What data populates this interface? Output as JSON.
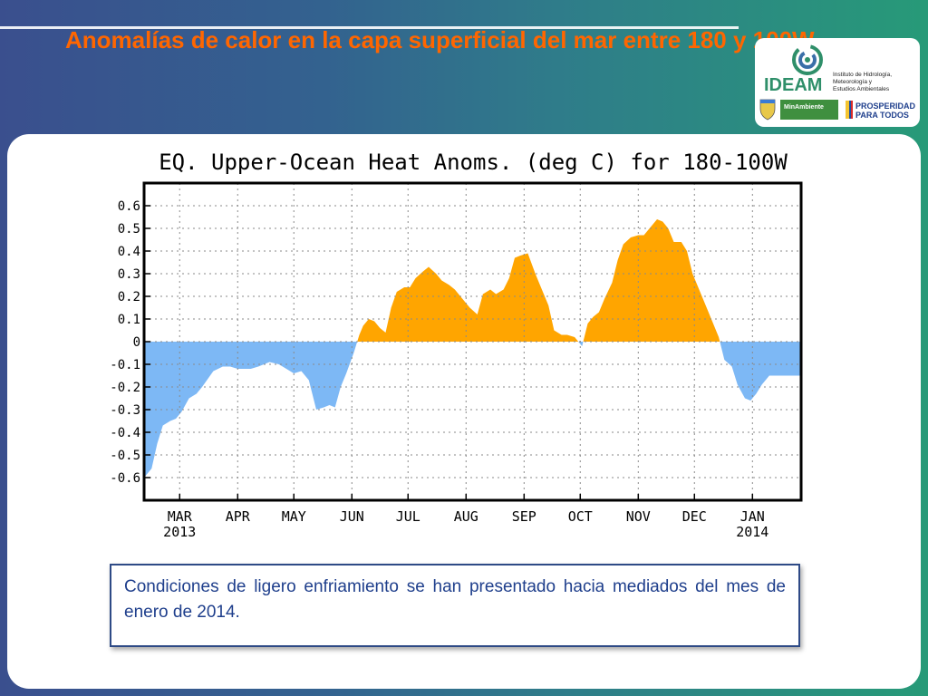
{
  "slide": {
    "title": "Anomalías de calor en la capa superficial del mar entre 180 y 100W",
    "note": "Condiciones de ligero enfriamiento se han presentado hacia mediados del mes de enero de 2014."
  },
  "logo": {
    "brand": "IDEAM",
    "institute_lines": [
      "Instituto de Hidrología,",
      "Meteorología y",
      "Estudios Ambientales"
    ],
    "ministry": "MinAmbiente",
    "prosperidad": [
      "PROSPERIDAD",
      "PARA TODOS"
    ]
  },
  "colors": {
    "title": "#ff6600",
    "positive_fill": "#ffa500",
    "negative_fill": "#7db8f5",
    "note_border": "#2e4a86",
    "note_text": "#1f3f8c",
    "ideam_green": "#2f8f6a"
  },
  "chart_data": {
    "type": "area",
    "title": "EQ. Upper-Ocean Heat Anoms. (deg C) for 180-100W",
    "xlabel": "",
    "ylabel": "",
    "ylim": [
      -0.6,
      0.6
    ],
    "y_ticks": [
      "0.6",
      "0.5",
      "0.4",
      "0.3",
      "0.2",
      "0.1",
      "0",
      "-0.1",
      "-0.2",
      "-0.3",
      "-0.4",
      "-0.5",
      "-0.6"
    ],
    "x_ticks": [
      {
        "date": "2013-03-01",
        "label": "MAR",
        "year": "2013"
      },
      {
        "date": "2013-04-01",
        "label": "APR",
        "year": ""
      },
      {
        "date": "2013-05-01",
        "label": "MAY",
        "year": ""
      },
      {
        "date": "2013-06-01",
        "label": "JUN",
        "year": ""
      },
      {
        "date": "2013-07-01",
        "label": "JUL",
        "year": ""
      },
      {
        "date": "2013-08-01",
        "label": "AUG",
        "year": ""
      },
      {
        "date": "2013-09-01",
        "label": "SEP",
        "year": ""
      },
      {
        "date": "2013-10-01",
        "label": "OCT",
        "year": ""
      },
      {
        "date": "2013-11-01",
        "label": "NOV",
        "year": ""
      },
      {
        "date": "2013-12-01",
        "label": "DEC",
        "year": ""
      },
      {
        "date": "2014-01-01",
        "label": "JAN",
        "year": "2014"
      }
    ],
    "xlim": [
      "2013-02-10",
      "2014-01-27"
    ],
    "grid": true,
    "series": [
      {
        "x": [
          "2013-02-10",
          "2013-02-14",
          "2013-02-17",
          "2013-02-20",
          "2013-02-24",
          "2013-02-27",
          "2013-03-02",
          "2013-03-06",
          "2013-03-10",
          "2013-03-13",
          "2013-03-19",
          "2013-03-24",
          "2013-03-28",
          "2013-04-01",
          "2013-04-04",
          "2013-04-08",
          "2013-04-12",
          "2013-04-18",
          "2013-04-23",
          "2013-04-27",
          "2013-05-01",
          "2013-05-05",
          "2013-05-09",
          "2013-05-13",
          "2013-05-17",
          "2013-05-20",
          "2013-05-23",
          "2013-05-26",
          "2013-05-29",
          "2013-06-02",
          "2013-06-05",
          "2013-06-07",
          "2013-06-10",
          "2013-06-13",
          "2013-06-16",
          "2013-06-19",
          "2013-06-22",
          "2013-06-25",
          "2013-06-29",
          "2013-07-02",
          "2013-07-05",
          "2013-07-09",
          "2013-07-12",
          "2013-07-16",
          "2013-07-19",
          "2013-07-23",
          "2013-07-26",
          "2013-07-30",
          "2013-08-03",
          "2013-08-07",
          "2013-08-10",
          "2013-08-14",
          "2013-08-17",
          "2013-08-21",
          "2013-08-24",
          "2013-08-27",
          "2013-08-30",
          "2013-09-03",
          "2013-09-07",
          "2013-09-10",
          "2013-09-14",
          "2013-09-17",
          "2013-09-21",
          "2013-09-24",
          "2013-09-28",
          "2013-10-02",
          "2013-10-05",
          "2013-10-08",
          "2013-10-11",
          "2013-10-14",
          "2013-10-18",
          "2013-10-21",
          "2013-10-24",
          "2013-10-28",
          "2013-11-01",
          "2013-11-04",
          "2013-11-07",
          "2013-11-11",
          "2013-11-14",
          "2013-11-17",
          "2013-11-20",
          "2013-11-24",
          "2013-11-27",
          "2013-11-30",
          "2013-12-04",
          "2013-12-07",
          "2013-12-10",
          "2013-12-14",
          "2013-12-17",
          "2013-12-21",
          "2013-12-24",
          "2013-12-28",
          "2013-12-31",
          "2014-01-03",
          "2014-01-06",
          "2014-01-10",
          "2014-01-13",
          "2014-01-17",
          "2014-01-20",
          "2014-01-24",
          "2014-01-27"
        ],
        "values": [
          -0.6,
          -0.56,
          -0.45,
          -0.37,
          -0.35,
          -0.34,
          -0.31,
          -0.25,
          -0.23,
          -0.2,
          -0.13,
          -0.11,
          -0.11,
          -0.12,
          -0.12,
          -0.12,
          -0.11,
          -0.09,
          -0.1,
          -0.12,
          -0.14,
          -0.13,
          -0.17,
          -0.3,
          -0.29,
          -0.28,
          -0.29,
          -0.2,
          -0.14,
          -0.05,
          0.03,
          0.07,
          0.1,
          0.09,
          0.06,
          0.04,
          0.15,
          0.22,
          0.24,
          0.24,
          0.28,
          0.31,
          0.33,
          0.3,
          0.27,
          0.25,
          0.23,
          0.19,
          0.15,
          0.12,
          0.21,
          0.23,
          0.21,
          0.23,
          0.28,
          0.37,
          0.38,
          0.39,
          0.3,
          0.24,
          0.16,
          0.05,
          0.03,
          0.03,
          0.02,
          -0.02,
          0.08,
          0.11,
          0.13,
          0.19,
          0.26,
          0.36,
          0.43,
          0.46,
          0.47,
          0.47,
          0.5,
          0.54,
          0.53,
          0.5,
          0.44,
          0.44,
          0.4,
          0.3,
          0.22,
          0.16,
          0.1,
          0.02,
          -0.08,
          -0.11,
          -0.19,
          -0.25,
          -0.26,
          -0.23,
          -0.19,
          -0.15,
          -0.15,
          -0.15,
          -0.15,
          -0.15,
          -0.15
        ]
      }
    ]
  }
}
